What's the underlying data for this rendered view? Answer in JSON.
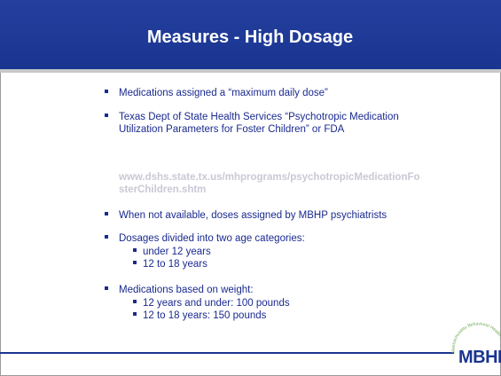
{
  "header": {
    "title": "Measures - High Dosage"
  },
  "bullets": [
    {
      "lines": [
        "Medications assigned a “maximum daily dose”"
      ]
    },
    {
      "lines": [
        "Texas Dept of State Health Services “Psychotropic Medication",
        "Utilization Parameters for Foster Children” or FDA"
      ]
    },
    {
      "link": [
        "www.dshs.state.tx.us/mhprograms/psychotropicMedicationFo",
        "sterChildren.shtm"
      ]
    },
    {
      "lines": [
        "When not available, doses assigned by MBHP psychiatrists"
      ]
    },
    {
      "lines": [
        "Dosages divided into two age categories:"
      ],
      "sub": [
        "under 12 years",
        "12 to 18 years"
      ]
    },
    {
      "lines": [
        "Medications based on weight:"
      ],
      "sub": [
        "12 years and under: 100 pounds",
        "12 to 18 years: 150 pounds"
      ]
    }
  ],
  "logo": {
    "text": "MBHP",
    "ring": "Massachusetts Behavioral Health Partnership"
  }
}
